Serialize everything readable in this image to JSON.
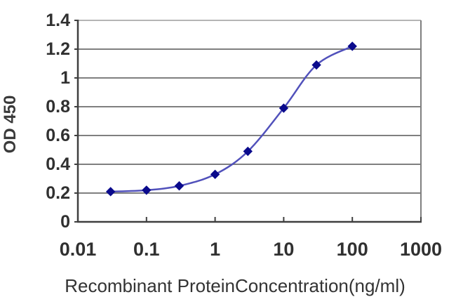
{
  "figure": {
    "background": "#ffffff"
  },
  "chart_data": {
    "type": "line",
    "title": "",
    "xlabel": "Recombinant ProteinConcentration(ng/ml)",
    "ylabel": "OD 450",
    "x_scale": "log",
    "xlim": [
      0.01,
      1000
    ],
    "ylim": [
      0,
      1.4
    ],
    "x_ticks": [
      0.01,
      0.1,
      1,
      10,
      100,
      1000
    ],
    "x_tick_labels": [
      "0.01",
      "0.1",
      "1",
      "10",
      "100",
      "1000"
    ],
    "y_ticks": [
      0,
      0.2,
      0.4,
      0.6,
      0.8,
      1,
      1.2,
      1.4
    ],
    "y_tick_labels": [
      "0",
      "0.2",
      "0.4",
      "0.6",
      "0.8",
      "1",
      "1.2",
      "1.4"
    ],
    "grid": true,
    "legend": "none",
    "series": [
      {
        "name": "OD 450",
        "x": [
          0.03,
          0.1,
          0.3,
          1,
          3,
          10,
          30,
          100
        ],
        "y": [
          0.21,
          0.22,
          0.25,
          0.33,
          0.49,
          0.79,
          1.09,
          1.22
        ],
        "marker": "diamond",
        "smoothed": true
      }
    ],
    "colors": {
      "line": "#5151bb",
      "marker": "#0a0a8c",
      "grid": "#7f7f7f",
      "grid_top": "#b5b5b5",
      "axis": "#3f3f3f",
      "plot_border": "#7f7f7f",
      "tick_text": "#303030",
      "title_text": "#333333"
    }
  }
}
